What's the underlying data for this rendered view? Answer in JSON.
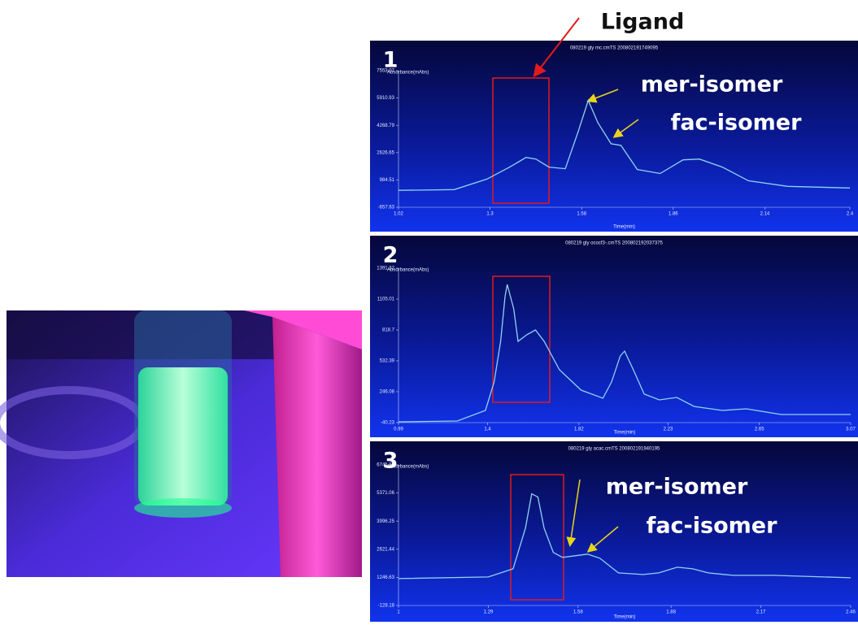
{
  "chart_data": [
    {
      "type": "line",
      "panel_label": "1",
      "title": "080219 gly mc.cmTS 200802191749095",
      "y_label": "Absorbance(mAbs)",
      "x_label": "Time(min)",
      "annotations": [
        "Ligand",
        "mer-isomer",
        "fac-isomer"
      ],
      "color": "#8fd3f0",
      "xlim": [
        1.02,
        2.4
      ],
      "xticks": [
        1.02,
        1.3,
        1.58,
        1.86,
        2.14,
        2.4
      ],
      "ylim": [
        -657.63,
        7553.07
      ],
      "yticks": [
        -657.63,
        984.51,
        2626.65,
        4268.79,
        5910.93,
        7553.07
      ],
      "x": [
        1.02,
        1.19,
        1.29,
        1.36,
        1.41,
        1.44,
        1.48,
        1.53,
        1.57,
        1.6,
        1.63,
        1.67,
        1.7,
        1.75,
        1.82,
        1.89,
        1.94,
        2.01,
        2.09,
        2.21,
        2.4
      ],
      "values": [
        357,
        405,
        1033,
        1757,
        2337,
        2240,
        1757,
        1661,
        3931,
        5766,
        4414,
        3158,
        3061,
        1613,
        1371,
        2192,
        2240,
        1757,
        936,
        598,
        502
      ]
    },
    {
      "type": "line",
      "panel_label": "2",
      "title": "080219 gly ococf3-.cmTS 200802192037375",
      "y_label": "Absorbance(mAbs)",
      "x_label": "Time(min)",
      "annotations": [],
      "color": "#8fd3f0",
      "xlim": [
        0.99,
        3.07
      ],
      "xticks": [
        0.99,
        1.4,
        1.82,
        2.23,
        2.65,
        3.07
      ],
      "ylim": [
        -40.23,
        1391.32
      ],
      "yticks": [
        -40.23,
        246.08,
        532.39,
        818.7,
        1105.01,
        1391.32
      ],
      "x": [
        0.99,
        1.26,
        1.39,
        1.43,
        1.46,
        1.48,
        1.49,
        1.52,
        1.54,
        1.58,
        1.62,
        1.66,
        1.73,
        1.83,
        1.93,
        1.97,
        2.01,
        2.03,
        2.07,
        2.12,
        2.19,
        2.27,
        2.35,
        2.48,
        2.59,
        2.75,
        3.07
      ],
      "values": [
        -33,
        -25,
        73,
        337,
        713,
        1128,
        1241,
        1014,
        713,
        774,
        819,
        713,
        450,
        261,
        186,
        337,
        578,
        623,
        450,
        224,
        171,
        193,
        110,
        73,
        88,
        35,
        35
      ]
    },
    {
      "type": "line",
      "panel_label": "3",
      "title": "080219 gly acac.cmTS 200802191940195",
      "y_label": "Absorbance(mAbs)",
      "x_label": "Time(min)",
      "annotations": [
        "mer-isomer",
        "fac-isomer"
      ],
      "color": "#8fd3f0",
      "xlim": [
        1.0,
        2.46
      ],
      "xticks": [
        1.0,
        1.29,
        1.58,
        1.88,
        2.17,
        2.46
      ],
      "ylim": [
        -128.18,
        6745.87
      ],
      "yticks": [
        -128.18,
        1246.63,
        2621.44,
        3996.25,
        5371.06,
        6745.87
      ],
      "x": [
        1.0,
        1.29,
        1.37,
        1.41,
        1.43,
        1.45,
        1.47,
        1.5,
        1.53,
        1.57,
        1.61,
        1.65,
        1.71,
        1.79,
        1.84,
        1.9,
        1.95,
        2.0,
        2.08,
        2.21,
        2.46
      ],
      "values": [
        1187,
        1267,
        1665,
        3658,
        5331,
        5172,
        3658,
        2462,
        2223,
        2303,
        2382,
        2183,
        1466,
        1386,
        1466,
        1745,
        1665,
        1466,
        1346,
        1346,
        1227
      ]
    }
  ]
}
